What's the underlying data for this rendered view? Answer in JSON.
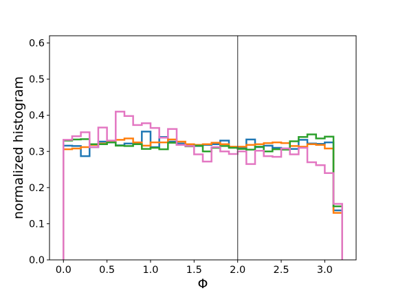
{
  "chart_data": {
    "type": "histogram-step",
    "xlabel": "Φ",
    "ylabel": "normalized histogram",
    "xlim": [
      -0.16,
      3.36
    ],
    "ylim": [
      0.0,
      0.62
    ],
    "xticks": [
      0.0,
      0.5,
      1.0,
      1.5,
      2.0,
      2.5,
      3.0
    ],
    "xtick_labels": [
      "0.0",
      "0.5",
      "1.0",
      "1.5",
      "2.0",
      "2.5",
      "3.0"
    ],
    "yticks": [
      0.0,
      0.1,
      0.2,
      0.3,
      0.4,
      0.5,
      0.6
    ],
    "ytick_labels": [
      "0.0",
      "0.1",
      "0.2",
      "0.3",
      "0.4",
      "0.5",
      "0.6"
    ],
    "grid": false,
    "vline": {
      "x": 2.0,
      "color": "#555555"
    },
    "bin_edges": [
      0.0,
      0.1,
      0.2,
      0.3,
      0.4,
      0.5,
      0.6,
      0.7,
      0.8,
      0.9,
      1.0,
      1.1,
      1.2,
      1.3,
      1.4,
      1.5,
      1.6,
      1.7,
      1.8,
      1.9,
      2.0,
      2.1,
      2.2,
      2.3,
      2.4,
      2.5,
      2.6,
      2.7,
      2.8,
      2.9,
      3.0,
      3.1,
      3.2
    ],
    "series": [
      {
        "color": "#1f77b4",
        "values": [
          0.316,
          0.315,
          0.287,
          0.312,
          0.327,
          0.325,
          0.317,
          0.322,
          0.321,
          0.355,
          0.312,
          0.34,
          0.327,
          0.322,
          0.318,
          0.315,
          0.318,
          0.32,
          0.33,
          0.312,
          0.31,
          0.333,
          0.312,
          0.316,
          0.31,
          0.308,
          0.307,
          0.332,
          0.322,
          0.321,
          0.325,
          0.137
        ]
      },
      {
        "color": "#ff7f0e",
        "values": [
          0.306,
          0.308,
          0.312,
          0.318,
          0.322,
          0.327,
          0.332,
          0.336,
          0.325,
          0.316,
          0.325,
          0.325,
          0.333,
          0.327,
          0.32,
          0.318,
          0.32,
          0.324,
          0.32,
          0.313,
          0.313,
          0.318,
          0.32,
          0.323,
          0.325,
          0.323,
          0.315,
          0.313,
          0.32,
          0.318,
          0.308,
          0.13
        ]
      },
      {
        "color": "#2ca02c",
        "values": [
          0.33,
          0.333,
          0.334,
          0.32,
          0.32,
          0.325,
          0.316,
          0.315,
          0.32,
          0.307,
          0.31,
          0.306,
          0.324,
          0.318,
          0.314,
          0.316,
          0.3,
          0.31,
          0.315,
          0.31,
          0.307,
          0.305,
          0.313,
          0.3,
          0.306,
          0.305,
          0.328,
          0.34,
          0.347,
          0.336,
          0.341,
          0.148
        ]
      },
      {
        "color": "#e377c2",
        "values": [
          0.332,
          0.342,
          0.353,
          0.312,
          0.366,
          0.33,
          0.41,
          0.398,
          0.373,
          0.378,
          0.365,
          0.338,
          0.362,
          0.318,
          0.315,
          0.292,
          0.272,
          0.312,
          0.3,
          0.293,
          0.3,
          0.265,
          0.302,
          0.287,
          0.285,
          0.308,
          0.292,
          0.31,
          0.27,
          0.262,
          0.24,
          0.155
        ]
      }
    ]
  }
}
